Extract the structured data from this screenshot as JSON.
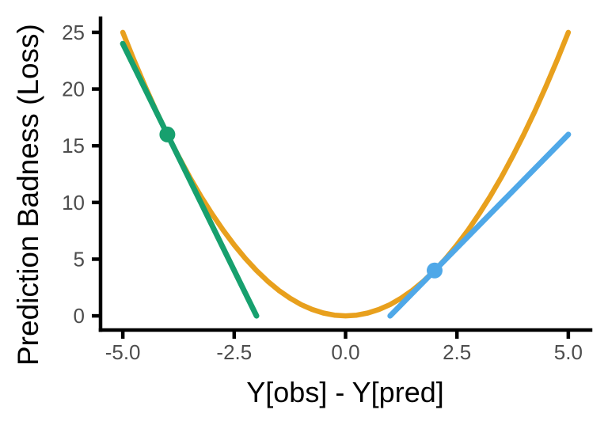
{
  "figure": {
    "background": "#ffffff"
  },
  "chart_data": {
    "type": "line",
    "title": "",
    "xlabel": "Y[obs] - Y[pred]",
    "ylabel": "Prediction Badness (Loss)",
    "xlim": [
      -5.5,
      5.5
    ],
    "ylim": [
      -1.25,
      26.25
    ],
    "grid": false,
    "legend": "none",
    "axis_color": "#000000",
    "tick_label_color": "#4d4d4d",
    "x_ticks": [
      {
        "value": -5.0,
        "label": "-5.0"
      },
      {
        "value": -2.5,
        "label": "-2.5"
      },
      {
        "value": 0.0,
        "label": "0.0"
      },
      {
        "value": 2.5,
        "label": "2.5"
      },
      {
        "value": 5.0,
        "label": "5.0"
      }
    ],
    "y_ticks": [
      {
        "value": 0,
        "label": "0"
      },
      {
        "value": 5,
        "label": "5"
      },
      {
        "value": 10,
        "label": "10"
      },
      {
        "value": 15,
        "label": "15"
      },
      {
        "value": 20,
        "label": "20"
      },
      {
        "value": 25,
        "label": "25"
      }
    ],
    "series": [
      {
        "name": "quadratic-loss-curve",
        "description": "y = x^2",
        "color": "#E8A01D",
        "stroke_width": 6.5,
        "x": [
          -5,
          -4.75,
          -4.5,
          -4.25,
          -4,
          -3.75,
          -3.5,
          -3.25,
          -3,
          -2.75,
          -2.5,
          -2.25,
          -2,
          -1.75,
          -1.5,
          -1.25,
          -1,
          -0.75,
          -0.5,
          -0.25,
          0,
          0.25,
          0.5,
          0.75,
          1,
          1.25,
          1.5,
          1.75,
          2,
          2.25,
          2.5,
          2.75,
          3,
          3.25,
          3.5,
          3.75,
          4,
          4.25,
          4.5,
          4.75,
          5
        ],
        "y": [
          25,
          22.5625,
          20.25,
          18.0625,
          16,
          14.0625,
          12.25,
          10.5625,
          9,
          7.5625,
          6.25,
          5.0625,
          4,
          3.0625,
          2.25,
          1.5625,
          1,
          0.5625,
          0.25,
          0.0625,
          0,
          0.0625,
          0.25,
          0.5625,
          1,
          1.5625,
          2.25,
          3.0625,
          4,
          5.0625,
          6.25,
          7.5625,
          9,
          10.5625,
          12.25,
          14.0625,
          16,
          18.0625,
          20.25,
          22.5625,
          25
        ]
      },
      {
        "name": "tangent-line-green",
        "description": "tangent at x = -4, slope -8 (y = -8x - 16)",
        "color": "#17A06E",
        "stroke_width": 7,
        "x": [
          -5,
          -2
        ],
        "y": [
          24,
          0
        ]
      },
      {
        "name": "tangent-line-blue",
        "description": "tangent at x = 2, slope 4 (y = 4x - 4)",
        "color": "#4FA8E8",
        "stroke_width": 7,
        "x": [
          1,
          5
        ],
        "y": [
          0,
          16
        ]
      }
    ],
    "markers": [
      {
        "name": "tangent-point-green",
        "x": -4,
        "y": 16,
        "color": "#17A06E",
        "radius": 10
      },
      {
        "name": "tangent-point-blue",
        "x": 2,
        "y": 4,
        "color": "#4FA8E8",
        "radius": 10
      }
    ]
  }
}
